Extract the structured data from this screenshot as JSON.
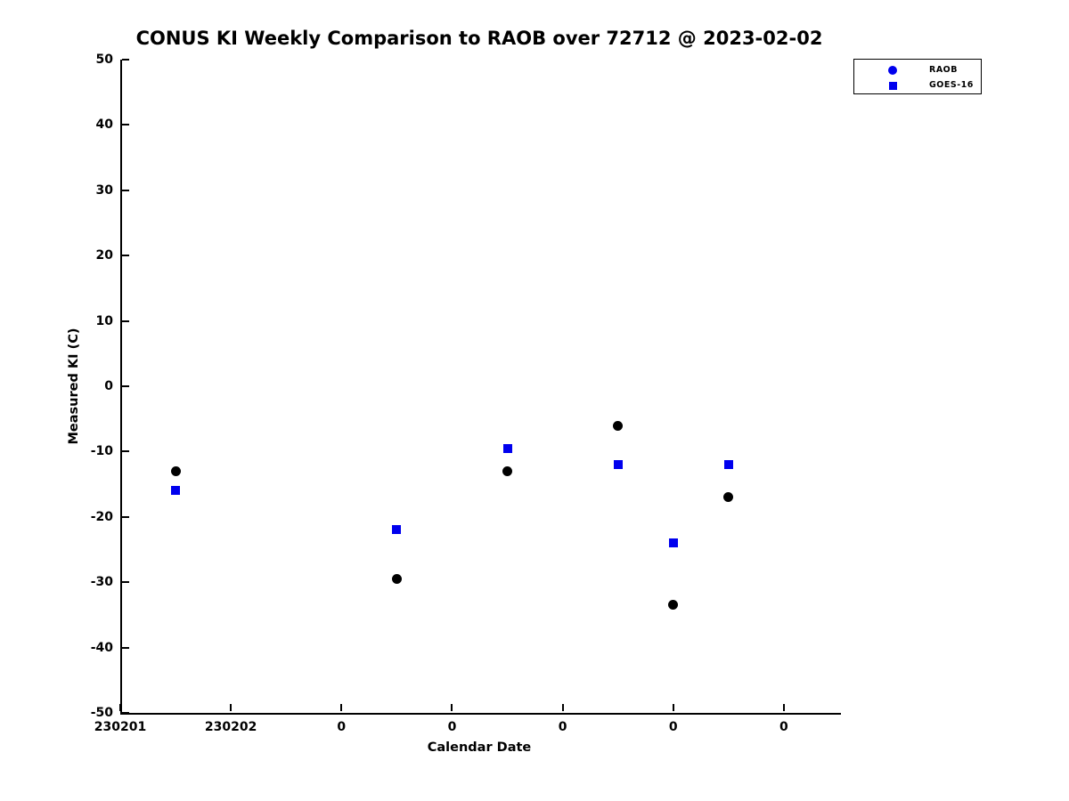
{
  "figure": {
    "background": "#ffffff",
    "text_color": "#000000"
  },
  "chart_data": {
    "type": "scatter",
    "title": "CONUS KI Weekly Comparison to RAOB over 72712 @ 2023-02-02",
    "xlabel": "Calendar Date",
    "ylabel": "Measured KI (C)",
    "xlim": [
      0,
      6.5
    ],
    "ylim": [
      -50,
      50
    ],
    "grid": false,
    "x_ticks": [
      {
        "pos": 0,
        "label": "230201"
      },
      {
        "pos": 1,
        "label": "230202"
      },
      {
        "pos": 2,
        "label": "0"
      },
      {
        "pos": 3,
        "label": "0"
      },
      {
        "pos": 4,
        "label": "0"
      },
      {
        "pos": 5,
        "label": "0"
      },
      {
        "pos": 6,
        "label": "0"
      }
    ],
    "y_ticks": [
      {
        "pos": 50,
        "label": "50"
      },
      {
        "pos": 40,
        "label": "40"
      },
      {
        "pos": 30,
        "label": "30"
      },
      {
        "pos": 20,
        "label": "20"
      },
      {
        "pos": 10,
        "label": "10"
      },
      {
        "pos": 0,
        "label": "0"
      },
      {
        "pos": -10,
        "label": "-10"
      },
      {
        "pos": -20,
        "label": "-20"
      },
      {
        "pos": -30,
        "label": "-30"
      },
      {
        "pos": -40,
        "label": "-40"
      },
      {
        "pos": -50,
        "label": "-50"
      }
    ],
    "legend": {
      "position": "top-right",
      "entries": [
        {
          "label": "RAOB",
          "marker": "circle",
          "color": "#0000ee"
        },
        {
          "label": "GOES-16",
          "marker": "square",
          "color": "#0000ee"
        }
      ]
    },
    "series": [
      {
        "name": "RAOB",
        "marker": "circle",
        "color": "#000000",
        "marker_size_px": 11,
        "points": [
          [
            0.5,
            -13
          ],
          [
            2.5,
            -29.5
          ],
          [
            3.5,
            -13
          ],
          [
            4.5,
            -6
          ],
          [
            5.0,
            -33.5
          ],
          [
            5.5,
            -17
          ]
        ]
      },
      {
        "name": "GOES-16",
        "marker": "square",
        "color": "#0000ee",
        "marker_size_px": 10,
        "points": [
          [
            0.5,
            -16
          ],
          [
            2.5,
            -22
          ],
          [
            3.5,
            -9.5
          ],
          [
            4.5,
            -12
          ],
          [
            5.0,
            -24
          ],
          [
            5.5,
            -12
          ]
        ]
      }
    ]
  }
}
